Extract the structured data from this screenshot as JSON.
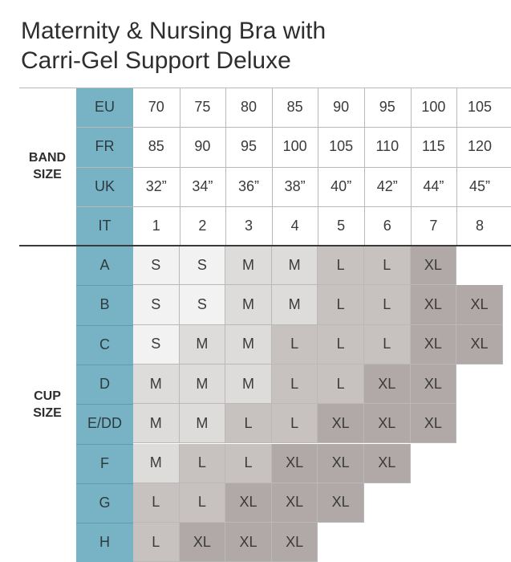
{
  "title": {
    "line1": "Maternity & Nursing Bra with",
    "line2": "Carri-Gel Support Deluxe"
  },
  "band_section": {
    "label_line1": "BAND",
    "label_line2": "SIZE",
    "rows": [
      {
        "label": "EU",
        "values": [
          "70",
          "75",
          "80",
          "85",
          "90",
          "95",
          "100",
          "105"
        ]
      },
      {
        "label": "FR",
        "values": [
          "85",
          "90",
          "95",
          "100",
          "105",
          "110",
          "115",
          "120"
        ]
      },
      {
        "label": "UK",
        "values": [
          "32”",
          "34”",
          "36”",
          "38”",
          "40”",
          "42”",
          "44”",
          "45”"
        ]
      },
      {
        "label": "IT",
        "values": [
          "1",
          "2",
          "3",
          "4",
          "5",
          "6",
          "7",
          "8"
        ]
      }
    ]
  },
  "cup_section": {
    "label_line1": "CUP",
    "label_line2": "SIZE",
    "rows": [
      {
        "label": "A",
        "values": [
          "S",
          "S",
          "M",
          "M",
          "L",
          "L",
          "XL",
          ""
        ]
      },
      {
        "label": "B",
        "values": [
          "S",
          "S",
          "M",
          "M",
          "L",
          "L",
          "XL",
          "XL"
        ]
      },
      {
        "label": "C",
        "values": [
          "S",
          "M",
          "M",
          "L",
          "L",
          "L",
          "XL",
          "XL"
        ]
      },
      {
        "label": "D",
        "values": [
          "M",
          "M",
          "M",
          "L",
          "L",
          "XL",
          "XL",
          ""
        ]
      },
      {
        "label": "E/DD",
        "values": [
          "M",
          "M",
          "L",
          "L",
          "XL",
          "XL",
          "XL",
          ""
        ]
      },
      {
        "label": "F",
        "values": [
          "M",
          "L",
          "L",
          "XL",
          "XL",
          "XL",
          "",
          ""
        ]
      },
      {
        "label": "G",
        "values": [
          "L",
          "L",
          "XL",
          "XL",
          "XL",
          "",
          "",
          ""
        ]
      },
      {
        "label": "H",
        "values": [
          "L",
          "XL",
          "XL",
          "XL",
          "",
          "",
          "",
          ""
        ]
      }
    ]
  },
  "colors": {
    "label_column": "#78b2c5",
    "size_S": "#f2f2f2",
    "size_M": "#dedcdb",
    "size_L": "#c7c1bf",
    "size_XL": "#b0a9a7",
    "grid_line": "#b9b9b9",
    "rule": "#3a3a3a"
  }
}
